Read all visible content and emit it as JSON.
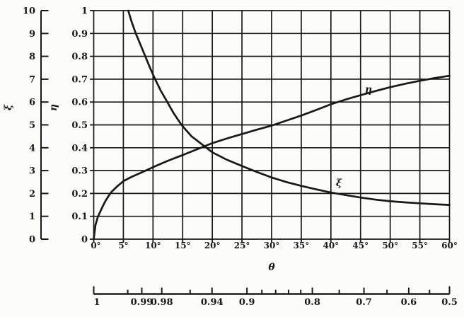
{
  "figure": {
    "background": "#fcfcfb",
    "ink_color": "#191919"
  },
  "chart_data": {
    "type": "line",
    "title": "",
    "grid": "solid square grid, 5 degrees per column, 0.1 per row, 12 columns x 10 rows",
    "legend_position": "labels beside curves",
    "theta_axis": {
      "label": "θ",
      "min_deg": 0,
      "max_deg": 60,
      "tick_step_deg": 5,
      "tick_labels": [
        "0°",
        "5°",
        "10°",
        "15°",
        "20°",
        "25°",
        "30°",
        "35°",
        "40°",
        "45°",
        "50°",
        "55°",
        "60°"
      ]
    },
    "xi_axis": {
      "label": "ξ",
      "min": 0,
      "max": 10,
      "tick_step": 1,
      "tick_labels": [
        "10",
        "9",
        "8",
        "7",
        "6",
        "5",
        "4",
        "3",
        "2",
        "1",
        "0"
      ]
    },
    "eta_axis": {
      "label": "η",
      "min": 0,
      "max": 1,
      "tick_step": 0.1,
      "tick_labels": [
        "1",
        "0.9",
        "0.8",
        "0.7",
        "0.6",
        "0.5",
        "0.4",
        "0.3",
        "0.2",
        "0.1",
        "0"
      ]
    },
    "cos_theta_scale": {
      "description": "auxiliary horizontal scale below theta axis; each tick sits at the x-position where theta = arccos(value)",
      "ticks": [
        {
          "value": 1.0,
          "label": "1"
        },
        {
          "value": 0.995,
          "label": ""
        },
        {
          "value": 0.99,
          "label": "0.99"
        },
        {
          "value": 0.98,
          "label": "0.98"
        },
        {
          "value": 0.96,
          "label": ""
        },
        {
          "value": 0.94,
          "label": "0.94"
        },
        {
          "value": 0.9,
          "label": "0.9"
        },
        {
          "value": 0.88,
          "label": ""
        },
        {
          "value": 0.86,
          "label": ""
        },
        {
          "value": 0.84,
          "label": ""
        },
        {
          "value": 0.82,
          "label": ""
        },
        {
          "value": 0.8,
          "label": "0.8"
        },
        {
          "value": 0.75,
          "label": ""
        },
        {
          "value": 0.7,
          "label": "0.7"
        },
        {
          "value": 0.65,
          "label": ""
        },
        {
          "value": 0.6,
          "label": "0.6"
        },
        {
          "value": 0.55,
          "label": ""
        },
        {
          "value": 0.5,
          "label": "0.5"
        }
      ]
    },
    "series": [
      {
        "name": "η",
        "scale": "eta",
        "scale_max": 1,
        "points": [
          [
            0,
            0
          ],
          [
            0.3,
            0.062
          ],
          [
            0.7,
            0.098
          ],
          [
            1,
            0.115
          ],
          [
            1.5,
            0.143
          ],
          [
            2,
            0.168
          ],
          [
            2.5,
            0.189
          ],
          [
            3,
            0.207
          ],
          [
            4,
            0.232
          ],
          [
            5,
            0.254
          ],
          [
            6.5,
            0.274
          ],
          [
            8,
            0.291
          ],
          [
            10,
            0.315
          ],
          [
            12.5,
            0.343
          ],
          [
            15,
            0.368
          ],
          [
            17.5,
            0.394
          ],
          [
            20,
            0.42
          ],
          [
            22.5,
            0.441
          ],
          [
            25,
            0.46
          ],
          [
            27.5,
            0.479
          ],
          [
            30,
            0.497
          ],
          [
            32.5,
            0.519
          ],
          [
            35,
            0.541
          ],
          [
            37.5,
            0.565
          ],
          [
            40,
            0.59
          ],
          [
            42.5,
            0.611
          ],
          [
            45,
            0.63
          ],
          [
            47.5,
            0.648
          ],
          [
            50,
            0.665
          ],
          [
            52.5,
            0.68
          ],
          [
            55,
            0.693
          ],
          [
            57.5,
            0.705
          ],
          [
            60,
            0.715
          ]
        ]
      },
      {
        "name": "ξ",
        "scale": "xi",
        "scale_max": 10,
        "points": [
          [
            5.82,
            10
          ],
          [
            6.4,
            9.5
          ],
          [
            7.1,
            9
          ],
          [
            7.9,
            8.5
          ],
          [
            8.7,
            8
          ],
          [
            9.5,
            7.5
          ],
          [
            10.35,
            7
          ],
          [
            11.3,
            6.5
          ],
          [
            12.4,
            6
          ],
          [
            13.5,
            5.5
          ],
          [
            14.8,
            5
          ],
          [
            16.5,
            4.5
          ],
          [
            18.6,
            4.08
          ],
          [
            20,
            3.8
          ],
          [
            22.5,
            3.47
          ],
          [
            25,
            3.2
          ],
          [
            27.5,
            2.94
          ],
          [
            30,
            2.7
          ],
          [
            32.5,
            2.5
          ],
          [
            35,
            2.33
          ],
          [
            37.5,
            2.18
          ],
          [
            40,
            2.04
          ],
          [
            42.5,
            1.93
          ],
          [
            45,
            1.82
          ],
          [
            47.5,
            1.73
          ],
          [
            50,
            1.66
          ],
          [
            52.5,
            1.61
          ],
          [
            55,
            1.57
          ],
          [
            57.5,
            1.53
          ],
          [
            60,
            1.5
          ]
        ]
      }
    ]
  }
}
